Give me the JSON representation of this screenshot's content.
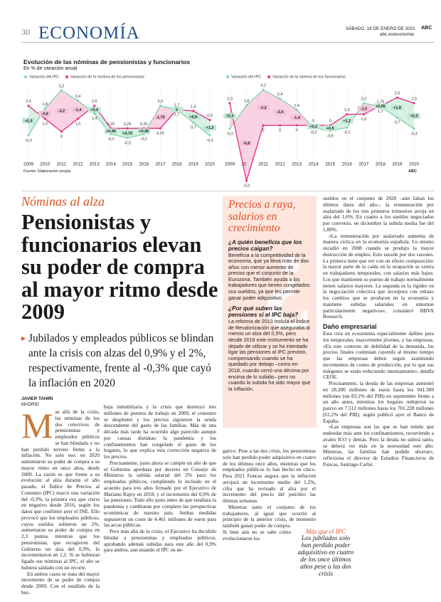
{
  "header": {
    "page_number": "30",
    "section": "ECONOMÍA",
    "date": "SÁBADO, 16 DE ENERO DE 2021",
    "brand": "ABC",
    "url": "abc.es/economia"
  },
  "graphic": {
    "title": "Evolución de las nóminas de pensionistas y funcionarios",
    "subtitle": "En % de variación anual",
    "source": "Fuente: Elaboración propia",
    "brand": "ABC"
  },
  "chart_data": [
    {
      "type": "line",
      "categories": [
        "2009",
        "2010",
        "2011",
        "2012",
        "2013",
        "2014",
        "2015",
        "2016",
        "2017",
        "2018",
        "2019",
        "2020"
      ],
      "ylim": [
        -1.5,
        3.7
      ],
      "series": [
        {
          "name": "Variación del IPC",
          "color": "#86d4ad",
          "values": [
            -0.3,
            1.8,
            3.2,
            2.4,
            1.4,
            -0.2,
            -0.5,
            -0.2,
            2.0,
            1.7,
            0.7,
            -0.3
          ],
          "value_labels": [
            "-0,3",
            "1,8",
            "3,2",
            "2,4",
            "1,4",
            "-0,2",
            "-0,5",
            "-0,2",
            "2,0",
            "1,7",
            "0,7",
            "-0,3"
          ]
        },
        {
          "name": "Variación de la nómina de los pensionistas",
          "color": "#e6358b",
          "values": [
            2.0,
            1.0,
            0,
            1.0,
            2.0,
            0.25,
            0.25,
            0.25,
            0.25,
            1.7,
            1.6,
            0.9
          ],
          "value_labels": [
            "2,0",
            "1,0",
            "0",
            "1,0",
            "2,0",
            "0,25",
            "0,25",
            "0,25",
            "0,25",
            "1,7",
            "1,6",
            "0,9"
          ]
        }
      ],
      "differences": {
        "values": [
          2.3,
          -0.8,
          -3.2,
          -1.4,
          0.6,
          0.45,
          0.75,
          0.45,
          -1.75,
          0,
          0.9,
          1.2
        ],
        "value_labels": [
          "+2,3",
          "-0,8",
          "-3,2",
          "-1,4",
          "+0,6",
          "+0,45",
          "+0,75",
          "+0,45",
          "-1,75",
          "0",
          "+0,9",
          "+1,2"
        ]
      }
    },
    {
      "type": "line",
      "categories": [
        "2009",
        "2010",
        "2011",
        "2012",
        "2013",
        "2014",
        "2015",
        "2016",
        "2017",
        "2018",
        "2019",
        "2020"
      ],
      "ylim": [
        -5.5,
        3.6
      ],
      "series": [
        {
          "name": "Variación del IPC",
          "color": "#86d4ad",
          "values": [
            -0.3,
            1.8,
            3.2,
            2.4,
            1.4,
            -0.2,
            -0.5,
            -0.2,
            2.0,
            1.7,
            0.7,
            -0.3
          ],
          "value_labels": [
            "-0,3",
            "1,8",
            "3,2",
            "2,4",
            "1,4",
            "-0,2",
            "-0,5",
            "-0,2",
            "2,0",
            "1,7",
            "0,7",
            "-0,3"
          ]
        },
        {
          "name": "Variación de la nómina de los funcionarios",
          "color": "#e6358b",
          "values": [
            2.0,
            -5.0,
            0,
            0,
            0,
            0,
            0,
            1.0,
            1.0,
            1.75,
            2.5,
            2.0
          ],
          "value_labels": [
            "2,0",
            "-5,0",
            "0",
            "0",
            "0",
            "0",
            "0",
            "1,0",
            "1,0",
            "1,75",
            "2,5",
            "2,0"
          ]
        }
      ],
      "differences": {
        "values": [
          2.3,
          -6.8,
          -3.2,
          -2.4,
          -1.4,
          0.2,
          0.5,
          1.2,
          -1.0,
          0.05,
          1.8,
          2.3
        ],
        "value_labels": [
          "+2,3",
          "-6,8",
          "-3,2",
          "-2,4",
          "-1,4",
          "+0,2",
          "+0,5",
          "+1,2",
          "-1,0",
          "+0,05",
          "+1,8",
          "+2,3"
        ]
      }
    }
  ],
  "article": {
    "kicker": "Nóminas al alza",
    "headline": "Pensionistas y funcionarios elevan su poder de compra al mayor ritmo desde 2009",
    "deck": "Jubilados y empleados públicos se blindan ante la crisis con alzas del 0,9% y el 2%, respectivamente, frente al -0,3% que cayó la inflación en 2020",
    "byline": "JAVIER TAHIRI",
    "dateline": "MADRID",
    "drop_cap": "M",
    "body": [
      "as allá de la crisis, las nóminas de los dos colectivos de pensionistas y empleados públicos se han blindado y no han perdido terreno frente a la inflación. No solo eso: en 2020 aumentaron su poder de compra a su mayor ritmo en once años, desde 2009. La razón es que frente a su evolución al alza durante el año pasado, el Índice de Precios al Consumo (IPC) marcó una variación del -0,3%, la primera vez que cierra en negativo desde 2016, según los datos que confirmó ayer el INE. Ello provocó que los empleados públicos, cuyos sueldos subieron un 2%, aumentaran su poder de compra en 2,3 puntos mientras que los pensionistas, que recogieron del Gobierno un alza del 0,9%, lo incrementaron en 1,2. Si se hubieran ligado sus nóminas al IPC, el año se hubiera saldado con un recorte.",
      "En ambos casos se trata del mayor incremento de su poder de compra desde 2009. Con el estallido de la bur-",
      "buja inmobiliaria y la crisis que destruyó tres millones de puestos de trabajo en 2009, el consumo se desplomó y los precios siguieron la senda descendente del gasto de las familias. Más de una década más tarde ha ocurrido algo parecido aunque por causas distintas: la pandemia y los confinamientos han congelado el gasto de los hogares, lo que explica esta corrección negativa de los precios.",
      "Precisamente, justo ahora se cumple un año de que el Gobierno aprobara por decreto en Consejo de Ministros la subida salarial del 2% para los empleados públicos, cumpliendo lo incluido en el acuerdo para tres años firmado por el Ejecutivo de Mariano Rajoy en 2018, y el incremento del 0,9% de las pensiones. Todo ello justo antes de que estallara la pandemia y cambiaran por completo las perspectivas económicas de nuestro país. Ambas medidas supusieron un coste de 4.461 millones de euros para las arcas públicas.",
      "Pero más allá de la crisis, el Ejecutivo ha decidido blindar a pensionistas y empleados públicos, aprobando además subidas para este año del 0,9% para ambos, aun estando el IPC en ne-",
      "gativo. Pese a las dos crisis, los pensionistas solo han perdido poder adquisitivo en cuatro de los últimos once años, mientras que los empleados públicos lo han hecho en cinco. Para 2021 Funcas augura que la inflación arrojará un incremento medio del 1,2%, cifra que ha revisado al alza por el incremento del precio del petróleo las últimas semanas.",
      "Mientras tanto el conjunto de los trabajadores, al igual que ocurrió al principio de la anterior crisis, de momento también ganan poder de compra. Si bien aún no se sabe cómo evolucionaron los",
      "sueldos en el conjunto de 2020 –aún faltan los últimos datos del año–, la remuneración por asalariado de los tres primeros trimestres arroja un alza del 1,6%. En cuanto a los sueldos negociados por convenio, en diciembre la subida media fue del 1,89%.",
      "«La remuneración por asalariado aumenta de manera cíclica en la economía española. Lo mismo sucedió en 2008 cuando se produjo la mayor destrucción de empleo. Esto sucede por dos razones. La primera tiene que ver con un efecto composición: la mayor parte de la caída en la ocupación se centra en trabajadores temporales, con salarios más bajos. Los que mantienen su puesto de trabajo normalmente tienen salarios mayores. La segunda es la rigidez en la negociación colectiva que incorpora con retraso los cambios que se producen en la economía y mantiene subidas salariales en entornos particularmente negativos», consideró BBVA Research.",
      "Esta crea un ecosistema especialmente dañino para los temporales, mayormente jóvenes, y las empresas. «En este contexto de debilidad de la demanda, los precios finales continúan cayendo al mismo tiempo que las empresas deben seguir asumiendo incrementos de costes de producción, por lo que sus márgenes se están reduciendo intensamente», detalla CEOE.",
      "Precisamente, la deuda de las empresas aumentó en 28.200 millones de euros hasta los 941.309 millones (un 83,1% del PIB) en septiembre frente a un año antes, mientras los hogares redujeron su pasivo en 7.512 millones hasta los 701.228 millones (61,2% del PIB), según publicó ayer el Banco de España.",
      "«Las empresas son las que se han tenido que endeudar más ante los confinamientos, recurriendo a avales ICO y demás. Pero la deuda no subirá tanto, se deberá ver más en la morosidad este año. Mientras, las familias han podido ahorrar», reflexiona el director de Estudios Financieros de Funcas, Santiago Carbó."
    ],
    "subheading": "Daño empresarial",
    "pull_quote": {
      "title": "Más que el IPC",
      "text": "Los jubilados solo han perdido poder adquisitivo en cuatro de los once últimos años pese a las dos crisis"
    }
  },
  "sidebar": {
    "title": "Precios a raya, salarios en crecimiento",
    "items": [
      {
        "question": "¿A quién beneficia que los precios caigan?",
        "answer": "Beneficia a la competitividad de la economía, que ya lleva más de dos años con menor aumento de precios que el conjunto de la Eurozona. También ayuda a los trabajadores que tienen congelados sus sueldos, ya que les permite ganar poder adquisitivo."
      },
      {
        "question": "¿Por qué suben las pensiones si el IPC baja?",
        "answer": "La reforma de 2013 incluía el Índice de Revalorización que aseguraba al menos un alza del 0,5%, pero desde 2018 este instrumento se ha dejado de utilizar y se ha intentado ligar las pensiones al IPC previsto, compensando cuando se ha quedado por debajo –como en 2018, cuando cerró una décima por encima de lo subido– pero no cuando la subida ha sido mayor que la inflación."
      }
    ]
  }
}
